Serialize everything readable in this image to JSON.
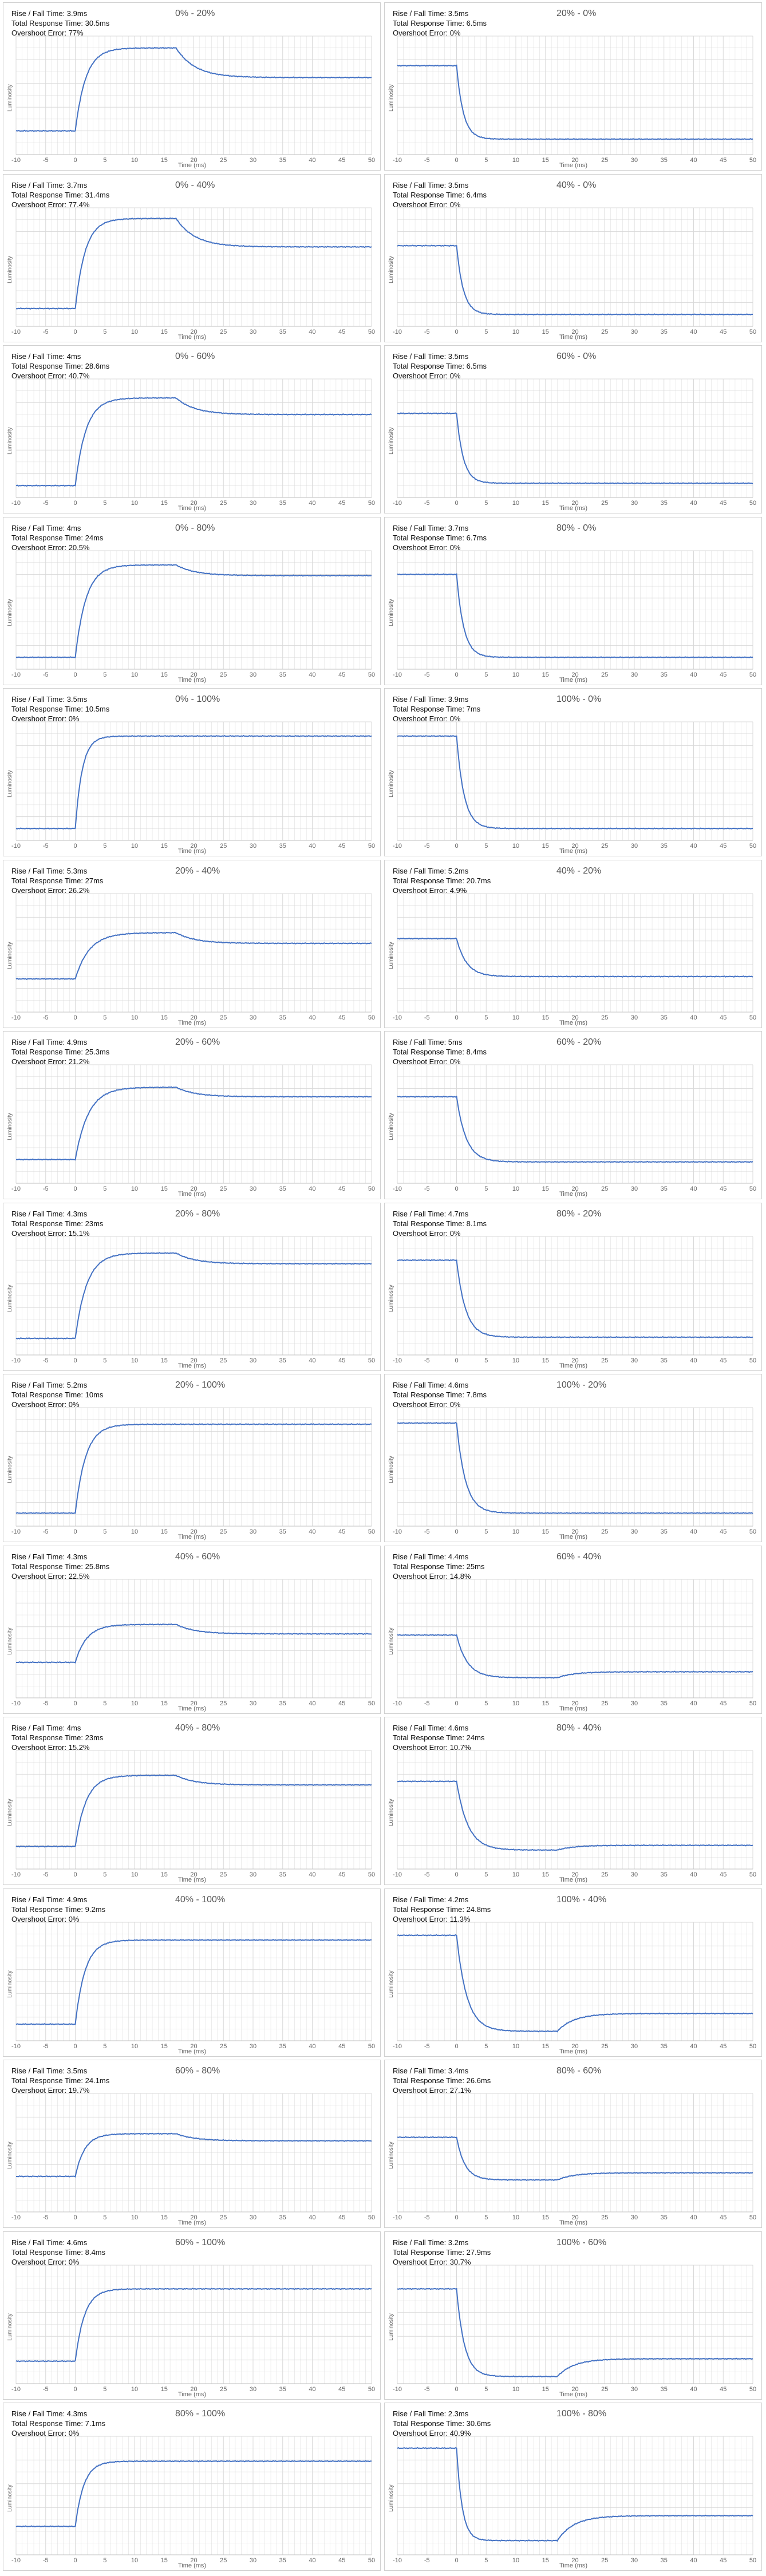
{
  "style": {
    "line_color": "#4472c4",
    "grid_color": "#d9d9d9",
    "text_color": "#111111",
    "title_color": "#555555",
    "background": "#ffffff"
  },
  "labels": {
    "rise_fall": "Rise / Fall Time:",
    "total_response": "Total Response Time:",
    "overshoot": "Overshoot Error:"
  },
  "chart_data": [
    {
      "type": "line",
      "title": "0% - 20%",
      "direction": "rise",
      "start_level": 20,
      "end_level": 65,
      "peak_level": 90,
      "rise_fall_time": "3.9ms",
      "total_response_time": "30.5ms",
      "overshoot_error": "77%",
      "xlabel": "Time (ms)",
      "ylabel": "Luminosity",
      "xlim": [
        -10,
        50
      ],
      "ylim": [
        0,
        100
      ],
      "x_ticks": [
        -10,
        -5,
        0,
        5,
        10,
        15,
        20,
        25,
        30,
        35,
        40,
        45,
        50
      ],
      "grid": true
    },
    {
      "type": "line",
      "title": "20% - 0%",
      "direction": "fall",
      "start_level": 75,
      "end_level": 13,
      "peak_level": 13,
      "rise_fall_time": "3.5ms",
      "total_response_time": "6.5ms",
      "overshoot_error": "0%",
      "xlabel": "Time (ms)",
      "ylabel": "Luminosity",
      "xlim": [
        -10,
        50
      ],
      "ylim": [
        0,
        100
      ],
      "x_ticks": [
        -10,
        -5,
        0,
        5,
        10,
        15,
        20,
        25,
        30,
        35,
        40,
        45,
        50
      ],
      "grid": true
    },
    {
      "type": "line",
      "title": "0% - 40%",
      "direction": "rise",
      "start_level": 15,
      "end_level": 67,
      "peak_level": 91,
      "rise_fall_time": "3.7ms",
      "total_response_time": "31.4ms",
      "overshoot_error": "77.4%",
      "xlabel": "Time (ms)",
      "ylabel": "Luminosity",
      "xlim": [
        -10,
        50
      ],
      "ylim": [
        0,
        100
      ],
      "x_ticks": [
        -10,
        -5,
        0,
        5,
        10,
        15,
        20,
        25,
        30,
        35,
        40,
        45,
        50
      ],
      "grid": true
    },
    {
      "type": "line",
      "title": "40% - 0%",
      "direction": "fall",
      "start_level": 68,
      "end_level": 10,
      "peak_level": 10,
      "rise_fall_time": "3.5ms",
      "total_response_time": "6.4ms",
      "overshoot_error": "0%",
      "xlabel": "Time (ms)",
      "ylabel": "Luminosity",
      "xlim": [
        -10,
        50
      ],
      "ylim": [
        0,
        100
      ],
      "x_ticks": [
        -10,
        -5,
        0,
        5,
        10,
        15,
        20,
        25,
        30,
        35,
        40,
        45,
        50
      ],
      "grid": true
    },
    {
      "type": "line",
      "title": "0% - 60%",
      "direction": "rise",
      "start_level": 10,
      "end_level": 70,
      "peak_level": 84,
      "rise_fall_time": "4ms",
      "total_response_time": "28.6ms",
      "overshoot_error": "40.7%",
      "xlabel": "Time (ms)",
      "ylabel": "Luminosity",
      "xlim": [
        -10,
        50
      ],
      "ylim": [
        0,
        100
      ],
      "x_ticks": [
        -10,
        -5,
        0,
        5,
        10,
        15,
        20,
        25,
        30,
        35,
        40,
        45,
        50
      ],
      "grid": true
    },
    {
      "type": "line",
      "title": "60% - 0%",
      "direction": "fall",
      "start_level": 71,
      "end_level": 12,
      "peak_level": 12,
      "rise_fall_time": "3.5ms",
      "total_response_time": "6.5ms",
      "overshoot_error": "0%",
      "xlabel": "Time (ms)",
      "ylabel": "Luminosity",
      "xlim": [
        -10,
        50
      ],
      "ylim": [
        0,
        100
      ],
      "x_ticks": [
        -10,
        -5,
        0,
        5,
        10,
        15,
        20,
        25,
        30,
        35,
        40,
        45,
        50
      ],
      "grid": true
    },
    {
      "type": "line",
      "title": "0% - 80%",
      "direction": "rise",
      "start_level": 10,
      "end_level": 79,
      "peak_level": 88,
      "rise_fall_time": "4ms",
      "total_response_time": "24ms",
      "overshoot_error": "20.5%",
      "xlabel": "Time (ms)",
      "ylabel": "Luminosity",
      "xlim": [
        -10,
        50
      ],
      "ylim": [
        0,
        100
      ],
      "x_ticks": [
        -10,
        -5,
        0,
        5,
        10,
        15,
        20,
        25,
        30,
        35,
        40,
        45,
        50
      ],
      "grid": true
    },
    {
      "type": "line",
      "title": "80% - 0%",
      "direction": "fall",
      "start_level": 80,
      "end_level": 10,
      "peak_level": 10,
      "rise_fall_time": "3.7ms",
      "total_response_time": "6.7ms",
      "overshoot_error": "0%",
      "xlabel": "Time (ms)",
      "ylabel": "Luminosity",
      "xlim": [
        -10,
        50
      ],
      "ylim": [
        0,
        100
      ],
      "x_ticks": [
        -10,
        -5,
        0,
        5,
        10,
        15,
        20,
        25,
        30,
        35,
        40,
        45,
        50
      ],
      "grid": true
    },
    {
      "type": "line",
      "title": "0% - 100%",
      "direction": "rise",
      "start_level": 10,
      "end_level": 88,
      "peak_level": 89,
      "rise_fall_time": "3.5ms",
      "total_response_time": "10.5ms",
      "overshoot_error": "0%",
      "xlabel": "Time (ms)",
      "ylabel": "Luminosity",
      "xlim": [
        -10,
        50
      ],
      "ylim": [
        0,
        100
      ],
      "x_ticks": [
        -10,
        -5,
        0,
        5,
        10,
        15,
        20,
        25,
        30,
        35,
        40,
        45,
        50
      ],
      "grid": true
    },
    {
      "type": "line",
      "title": "100% - 0%",
      "direction": "fall",
      "start_level": 88,
      "end_level": 10,
      "peak_level": 10,
      "rise_fall_time": "3.9ms",
      "total_response_time": "7ms",
      "overshoot_error": "0%",
      "xlabel": "Time (ms)",
      "ylabel": "Luminosity",
      "xlim": [
        -10,
        50
      ],
      "ylim": [
        0,
        100
      ],
      "x_ticks": [
        -10,
        -5,
        0,
        5,
        10,
        15,
        20,
        25,
        30,
        35,
        40,
        45,
        50
      ],
      "grid": true
    },
    {
      "type": "line",
      "title": "20% - 40%",
      "direction": "rise",
      "start_level": 28,
      "end_level": 58,
      "peak_level": 67,
      "rise_fall_time": "5.3ms",
      "total_response_time": "27ms",
      "overshoot_error": "26.2%",
      "xlabel": "Time (ms)",
      "ylabel": "Luminosity",
      "xlim": [
        -10,
        50
      ],
      "ylim": [
        0,
        100
      ],
      "x_ticks": [
        -10,
        -5,
        0,
        5,
        10,
        15,
        20,
        25,
        30,
        35,
        40,
        45,
        50
      ],
      "grid": true
    },
    {
      "type": "line",
      "title": "40% - 20%",
      "direction": "fall",
      "start_level": 62,
      "end_level": 30,
      "peak_level": 28,
      "rise_fall_time": "5.2ms",
      "total_response_time": "20.7ms",
      "overshoot_error": "4.9%",
      "xlabel": "Time (ms)",
      "ylabel": "Luminosity",
      "xlim": [
        -10,
        50
      ],
      "ylim": [
        0,
        100
      ],
      "x_ticks": [
        -10,
        -5,
        0,
        5,
        10,
        15,
        20,
        25,
        30,
        35,
        40,
        45,
        50
      ],
      "grid": true
    },
    {
      "type": "line",
      "title": "20% - 60%",
      "direction": "rise",
      "start_level": 20,
      "end_level": 73,
      "peak_level": 81,
      "rise_fall_time": "4.9ms",
      "total_response_time": "25.3ms",
      "overshoot_error": "21.2%",
      "xlabel": "Time (ms)",
      "ylabel": "Luminosity",
      "xlim": [
        -10,
        50
      ],
      "ylim": [
        0,
        100
      ],
      "x_ticks": [
        -10,
        -5,
        0,
        5,
        10,
        15,
        20,
        25,
        30,
        35,
        40,
        45,
        50
      ],
      "grid": true
    },
    {
      "type": "line",
      "title": "60% - 20%",
      "direction": "fall",
      "start_level": 73,
      "end_level": 18,
      "peak_level": 18,
      "rise_fall_time": "5ms",
      "total_response_time": "8.4ms",
      "overshoot_error": "0%",
      "xlabel": "Time (ms)",
      "ylabel": "Luminosity",
      "xlim": [
        -10,
        50
      ],
      "ylim": [
        0,
        100
      ],
      "x_ticks": [
        -10,
        -5,
        0,
        5,
        10,
        15,
        20,
        25,
        30,
        35,
        40,
        45,
        50
      ],
      "grid": true
    },
    {
      "type": "line",
      "title": "20% - 80%",
      "direction": "rise",
      "start_level": 14,
      "end_level": 77,
      "peak_level": 86,
      "rise_fall_time": "4.3ms",
      "total_response_time": "23ms",
      "overshoot_error": "15.1%",
      "xlabel": "Time (ms)",
      "ylabel": "Luminosity",
      "xlim": [
        -10,
        50
      ],
      "ylim": [
        0,
        100
      ],
      "x_ticks": [
        -10,
        -5,
        0,
        5,
        10,
        15,
        20,
        25,
        30,
        35,
        40,
        45,
        50
      ],
      "grid": true
    },
    {
      "type": "line",
      "title": "80% - 20%",
      "direction": "fall",
      "start_level": 80,
      "end_level": 15,
      "peak_level": 15,
      "rise_fall_time": "4.7ms",
      "total_response_time": "8.1ms",
      "overshoot_error": "0%",
      "xlabel": "Time (ms)",
      "ylabel": "Luminosity",
      "xlim": [
        -10,
        50
      ],
      "ylim": [
        0,
        100
      ],
      "x_ticks": [
        -10,
        -5,
        0,
        5,
        10,
        15,
        20,
        25,
        30,
        35,
        40,
        45,
        50
      ],
      "grid": true
    },
    {
      "type": "line",
      "title": "20% - 100%",
      "direction": "rise",
      "start_level": 11,
      "end_level": 86,
      "peak_level": 87,
      "rise_fall_time": "5.2ms",
      "total_response_time": "10ms",
      "overshoot_error": "0%",
      "xlabel": "Time (ms)",
      "ylabel": "Luminosity",
      "xlim": [
        -10,
        50
      ],
      "ylim": [
        0,
        100
      ],
      "x_ticks": [
        -10,
        -5,
        0,
        5,
        10,
        15,
        20,
        25,
        30,
        35,
        40,
        45,
        50
      ],
      "grid": true
    },
    {
      "type": "line",
      "title": "100% - 20%",
      "direction": "fall",
      "start_level": 87,
      "end_level": 11,
      "peak_level": 11,
      "rise_fall_time": "4.6ms",
      "total_response_time": "7.8ms",
      "overshoot_error": "0%",
      "xlabel": "Time (ms)",
      "ylabel": "Luminosity",
      "xlim": [
        -10,
        50
      ],
      "ylim": [
        0,
        100
      ],
      "x_ticks": [
        -10,
        -5,
        0,
        5,
        10,
        15,
        20,
        25,
        30,
        35,
        40,
        45,
        50
      ],
      "grid": true
    },
    {
      "type": "line",
      "title": "40% - 60%",
      "direction": "rise",
      "start_level": 30,
      "end_level": 54,
      "peak_level": 62,
      "rise_fall_time": "4.3ms",
      "total_response_time": "25.8ms",
      "overshoot_error": "22.5%",
      "xlabel": "Time (ms)",
      "ylabel": "Luminosity",
      "xlim": [
        -10,
        50
      ],
      "ylim": [
        0,
        100
      ],
      "x_ticks": [
        -10,
        -5,
        0,
        5,
        10,
        15,
        20,
        25,
        30,
        35,
        40,
        45,
        50
      ],
      "grid": true
    },
    {
      "type": "line",
      "title": "60% - 40%",
      "direction": "fall",
      "start_level": 53,
      "end_level": 22,
      "peak_level": 17,
      "rise_fall_time": "4.4ms",
      "total_response_time": "25ms",
      "overshoot_error": "14.8%",
      "xlabel": "Time (ms)",
      "ylabel": "Luminosity",
      "xlim": [
        -10,
        50
      ],
      "ylim": [
        0,
        100
      ],
      "x_ticks": [
        -10,
        -5,
        0,
        5,
        10,
        15,
        20,
        25,
        30,
        35,
        40,
        45,
        50
      ],
      "grid": true
    },
    {
      "type": "line",
      "title": "40% - 80%",
      "direction": "rise",
      "start_level": 19,
      "end_level": 71,
      "peak_level": 79,
      "rise_fall_time": "4ms",
      "total_response_time": "23ms",
      "overshoot_error": "15.2%",
      "xlabel": "Time (ms)",
      "ylabel": "Luminosity",
      "xlim": [
        -10,
        50
      ],
      "ylim": [
        0,
        100
      ],
      "x_ticks": [
        -10,
        -5,
        0,
        5,
        10,
        15,
        20,
        25,
        30,
        35,
        40,
        45,
        50
      ],
      "grid": true
    },
    {
      "type": "line",
      "title": "80% - 40%",
      "direction": "fall",
      "start_level": 74,
      "end_level": 20,
      "peak_level": 16,
      "rise_fall_time": "4.6ms",
      "total_response_time": "24ms",
      "overshoot_error": "10.7%",
      "xlabel": "Time (ms)",
      "ylabel": "Luminosity",
      "xlim": [
        -10,
        50
      ],
      "ylim": [
        0,
        100
      ],
      "x_ticks": [
        -10,
        -5,
        0,
        5,
        10,
        15,
        20,
        25,
        30,
        35,
        40,
        45,
        50
      ],
      "grid": true
    },
    {
      "type": "line",
      "title": "40% - 100%",
      "direction": "rise",
      "start_level": 14,
      "end_level": 85,
      "peak_level": 86,
      "rise_fall_time": "4.9ms",
      "total_response_time": "9.2ms",
      "overshoot_error": "0%",
      "xlabel": "Time (ms)",
      "ylabel": "Luminosity",
      "xlim": [
        -10,
        50
      ],
      "ylim": [
        0,
        100
      ],
      "x_ticks": [
        -10,
        -5,
        0,
        5,
        10,
        15,
        20,
        25,
        30,
        35,
        40,
        45,
        50
      ],
      "grid": true
    },
    {
      "type": "line",
      "title": "100% - 40%",
      "direction": "fall",
      "start_level": 89,
      "end_level": 23,
      "peak_level": 8,
      "rise_fall_time": "4.2ms",
      "total_response_time": "24.8ms",
      "overshoot_error": "11.3%",
      "xlabel": "Time (ms)",
      "ylabel": "Luminosity",
      "xlim": [
        -10,
        50
      ],
      "ylim": [
        0,
        100
      ],
      "x_ticks": [
        -10,
        -5,
        0,
        5,
        10,
        15,
        20,
        25,
        30,
        35,
        40,
        45,
        50
      ],
      "grid": true
    },
    {
      "type": "line",
      "title": "60% - 80%",
      "direction": "rise",
      "start_level": 30,
      "end_level": 60,
      "peak_level": 66,
      "rise_fall_time": "3.5ms",
      "total_response_time": "24.1ms",
      "overshoot_error": "19.7%",
      "xlabel": "Time (ms)",
      "ylabel": "Luminosity",
      "xlim": [
        -10,
        50
      ],
      "ylim": [
        0,
        100
      ],
      "x_ticks": [
        -10,
        -5,
        0,
        5,
        10,
        15,
        20,
        25,
        30,
        35,
        40,
        45,
        50
      ],
      "grid": true
    },
    {
      "type": "line",
      "title": "80% - 60%",
      "direction": "fall",
      "start_level": 63,
      "end_level": 33,
      "peak_level": 27,
      "rise_fall_time": "3.4ms",
      "total_response_time": "26.6ms",
      "overshoot_error": "27.1%",
      "xlabel": "Time (ms)",
      "ylabel": "Luminosity",
      "xlim": [
        -10,
        50
      ],
      "ylim": [
        0,
        100
      ],
      "x_ticks": [
        -10,
        -5,
        0,
        5,
        10,
        15,
        20,
        25,
        30,
        35,
        40,
        45,
        50
      ],
      "grid": true
    },
    {
      "type": "line",
      "title": "60% - 100%",
      "direction": "rise",
      "start_level": 19,
      "end_level": 80,
      "peak_level": 81,
      "rise_fall_time": "4.6ms",
      "total_response_time": "8.4ms",
      "overshoot_error": "0%",
      "xlabel": "Time (ms)",
      "ylabel": "Luminosity",
      "xlim": [
        -10,
        50
      ],
      "ylim": [
        0,
        100
      ],
      "x_ticks": [
        -10,
        -5,
        0,
        5,
        10,
        15,
        20,
        25,
        30,
        35,
        40,
        45,
        50
      ],
      "grid": true
    },
    {
      "type": "line",
      "title": "100% - 60%",
      "direction": "fall",
      "start_level": 80,
      "end_level": 21,
      "peak_level": 6,
      "rise_fall_time": "3.2ms",
      "total_response_time": "27.9ms",
      "overshoot_error": "30.7%",
      "xlabel": "Time (ms)",
      "ylabel": "Luminosity",
      "xlim": [
        -10,
        50
      ],
      "ylim": [
        0,
        100
      ],
      "x_ticks": [
        -10,
        -5,
        0,
        5,
        10,
        15,
        20,
        25,
        30,
        35,
        40,
        45,
        50
      ],
      "grid": true
    },
    {
      "type": "line",
      "title": "80% - 100%",
      "direction": "rise",
      "start_level": 24,
      "end_level": 79,
      "peak_level": 80,
      "rise_fall_time": "4.3ms",
      "total_response_time": "7.1ms",
      "overshoot_error": "0%",
      "xlabel": "Time (ms)",
      "ylabel": "Luminosity",
      "xlim": [
        -10,
        50
      ],
      "ylim": [
        0,
        100
      ],
      "x_ticks": [
        -10,
        -5,
        0,
        5,
        10,
        15,
        20,
        25,
        30,
        35,
        40,
        45,
        50
      ],
      "grid": true
    },
    {
      "type": "line",
      "title": "100% - 80%",
      "direction": "fall",
      "start_level": 90,
      "end_level": 33,
      "peak_level": 12,
      "rise_fall_time": "2.3ms",
      "total_response_time": "30.6ms",
      "overshoot_error": "40.9%",
      "xlabel": "Time (ms)",
      "ylabel": "Luminosity",
      "xlim": [
        -10,
        50
      ],
      "ylim": [
        0,
        100
      ],
      "x_ticks": [
        -10,
        -5,
        0,
        5,
        10,
        15,
        20,
        25,
        30,
        35,
        40,
        45,
        50
      ],
      "grid": true
    }
  ]
}
